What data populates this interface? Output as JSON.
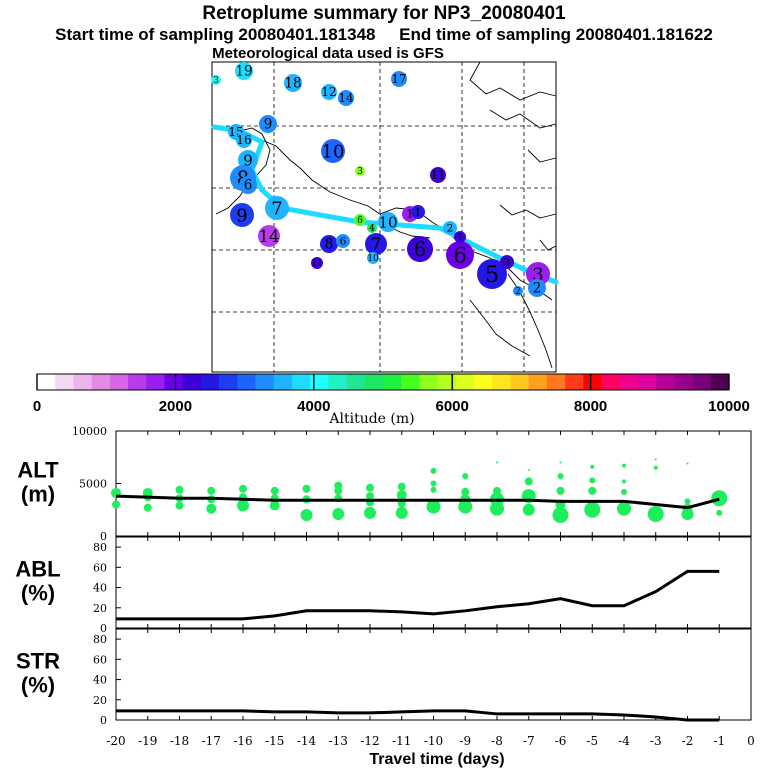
{
  "header": {
    "title": "Retroplume summary for NP3_20080401",
    "start_label": "Start time of sampling 20080401.181348",
    "end_label": "End time of sampling 20080401.181622",
    "met_label": "Meteorological data used is GFS"
  },
  "colorbar": {
    "ticks": [
      "0",
      "2000",
      "4000",
      "6000",
      "8000",
      "10000"
    ],
    "label": "Altitude (m)",
    "colors": [
      "#ffffff",
      "#f4d8f4",
      "#eeb4ee",
      "#e48ce4",
      "#d864e6",
      "#b83cea",
      "#9a1ef0",
      "#6a00e8",
      "#3c00d8",
      "#2418e6",
      "#1e3cf0",
      "#1e64ff",
      "#1e8cff",
      "#1eb4ff",
      "#1edcff",
      "#1effff",
      "#1ef0c8",
      "#1ee696",
      "#1ee664",
      "#1ef040",
      "#46ff1e",
      "#8cff1e",
      "#b4ff1e",
      "#dcff1e",
      "#ffff1e",
      "#ffe61e",
      "#ffc81e",
      "#ffa01e",
      "#ff781e",
      "#ff3c1e",
      "#ff0000",
      "#ff0064",
      "#f0008c",
      "#dc00a0",
      "#b40096",
      "#96008c",
      "#780078",
      "#500050"
    ]
  },
  "map": {
    "track_color": "#1edcff",
    "markers": [
      {
        "label": "3",
        "alt": 4200
      },
      {
        "label": "19",
        "alt": 3800
      },
      {
        "label": "18",
        "alt": 3700
      },
      {
        "label": "12",
        "alt": 3600
      },
      {
        "label": "14",
        "alt": 3500
      },
      {
        "label": "17",
        "alt": 3400
      },
      {
        "label": "9",
        "alt": 3300
      },
      {
        "label": "15",
        "alt": 3700
      },
      {
        "label": "16",
        "alt": 3700
      },
      {
        "label": "10",
        "alt": 3000
      },
      {
        "label": "9",
        "alt": 3600
      },
      {
        "label": "8",
        "alt": 3500
      },
      {
        "label": "3",
        "alt": 5800
      },
      {
        "label": "11",
        "alt": 2200
      },
      {
        "label": "6",
        "alt": 5600
      },
      {
        "label": "7",
        "alt": 3600
      },
      {
        "label": "9",
        "alt": 2900
      },
      {
        "label": "14",
        "alt": 1500
      },
      {
        "label": "8",
        "alt": 2600
      },
      {
        "label": "6",
        "alt": 3500
      },
      {
        "label": "4",
        "alt": 4900
      },
      {
        "label": "7",
        "alt": 2700
      },
      {
        "label": "10",
        "alt": 3700
      },
      {
        "label": "6",
        "alt": 2400
      },
      {
        "label": "1",
        "alt": 1700
      },
      {
        "label": "1",
        "alt": 2600
      },
      {
        "label": "2",
        "alt": 3600
      },
      {
        "label": "6",
        "alt": 2000
      },
      {
        "label": "5",
        "alt": 2500
      },
      {
        "label": "3",
        "alt": 1800
      },
      {
        "label": "3",
        "alt": 2300
      },
      {
        "label": "1",
        "alt": 2400
      },
      {
        "label": "2",
        "alt": 3400
      },
      {
        "label": "2",
        "alt": 3500
      },
      {
        "label": "11",
        "alt": 2300
      },
      {
        "label": "10",
        "alt": 3700
      },
      {
        "label": "6",
        "alt": 3300
      }
    ]
  },
  "chart_data": [
    {
      "type": "scatter",
      "panel_label": "ALT",
      "unit_label": "(m)",
      "ylim": [
        0,
        10000
      ],
      "yticks": [
        0,
        5000,
        10000
      ],
      "ytick_labels": [
        "0",
        "5000",
        "10000"
      ],
      "mean_line": {
        "x": [
          -20,
          -19,
          -18,
          -17,
          -16,
          -15,
          -14,
          -13,
          -12,
          -11,
          -10,
          -9,
          -8,
          -7,
          -6,
          -5,
          -4,
          -3,
          -2,
          -1
        ],
        "y": [
          3800,
          3700,
          3600,
          3600,
          3500,
          3400,
          3400,
          3400,
          3400,
          3400,
          3400,
          3400,
          3400,
          3400,
          3300,
          3300,
          3300,
          3000,
          2700,
          3500
        ]
      },
      "particles": [
        {
          "x": -20,
          "y": 4100,
          "s": 5
        },
        {
          "x": -20,
          "y": 3000,
          "s": 4
        },
        {
          "x": -19,
          "y": 4100,
          "s": 5
        },
        {
          "x": -19,
          "y": 3700,
          "s": 4
        },
        {
          "x": -19,
          "y": 2700,
          "s": 4
        },
        {
          "x": -18,
          "y": 4400,
          "s": 4
        },
        {
          "x": -18,
          "y": 3600,
          "s": 4
        },
        {
          "x": -18,
          "y": 2900,
          "s": 4
        },
        {
          "x": -17,
          "y": 4300,
          "s": 4
        },
        {
          "x": -17,
          "y": 3500,
          "s": 4
        },
        {
          "x": -17,
          "y": 2600,
          "s": 5
        },
        {
          "x": -16,
          "y": 4500,
          "s": 4
        },
        {
          "x": -16,
          "y": 3700,
          "s": 4
        },
        {
          "x": -16,
          "y": 2900,
          "s": 6
        },
        {
          "x": -15,
          "y": 4300,
          "s": 4
        },
        {
          "x": -15,
          "y": 3600,
          "s": 4
        },
        {
          "x": -15,
          "y": 2900,
          "s": 5
        },
        {
          "x": -14,
          "y": 4500,
          "s": 4
        },
        {
          "x": -14,
          "y": 3500,
          "s": 4
        },
        {
          "x": -14,
          "y": 2000,
          "s": 6
        },
        {
          "x": -13,
          "y": 4800,
          "s": 4
        },
        {
          "x": -13,
          "y": 4300,
          "s": 4
        },
        {
          "x": -13,
          "y": 3600,
          "s": 4
        },
        {
          "x": -13,
          "y": 2100,
          "s": 6
        },
        {
          "x": -12,
          "y": 4600,
          "s": 4
        },
        {
          "x": -12,
          "y": 3800,
          "s": 4
        },
        {
          "x": -12,
          "y": 3200,
          "s": 4
        },
        {
          "x": -12,
          "y": 2200,
          "s": 6
        },
        {
          "x": -11,
          "y": 4700,
          "s": 4
        },
        {
          "x": -11,
          "y": 3900,
          "s": 5
        },
        {
          "x": -11,
          "y": 3100,
          "s": 4
        },
        {
          "x": -11,
          "y": 2200,
          "s": 6
        },
        {
          "x": -10,
          "y": 6200,
          "s": 3
        },
        {
          "x": -10,
          "y": 5000,
          "s": 3
        },
        {
          "x": -10,
          "y": 4400,
          "s": 3
        },
        {
          "x": -10,
          "y": 2800,
          "s": 7
        },
        {
          "x": -9,
          "y": 5700,
          "s": 3
        },
        {
          "x": -9,
          "y": 4200,
          "s": 4
        },
        {
          "x": -9,
          "y": 3500,
          "s": 5
        },
        {
          "x": -9,
          "y": 2800,
          "s": 7
        },
        {
          "x": -8,
          "y": 7000,
          "s": 1
        },
        {
          "x": -8,
          "y": 4300,
          "s": 4
        },
        {
          "x": -8,
          "y": 3500,
          "s": 7
        },
        {
          "x": -8,
          "y": 2600,
          "s": 7
        },
        {
          "x": -7,
          "y": 6300,
          "s": 1
        },
        {
          "x": -7,
          "y": 5200,
          "s": 4
        },
        {
          "x": -7,
          "y": 3800,
          "s": 7
        },
        {
          "x": -7,
          "y": 2500,
          "s": 6
        },
        {
          "x": -6,
          "y": 7000,
          "s": 1
        },
        {
          "x": -6,
          "y": 5700,
          "s": 3
        },
        {
          "x": -6,
          "y": 4300,
          "s": 4
        },
        {
          "x": -6,
          "y": 3000,
          "s": 5
        },
        {
          "x": -6,
          "y": 2000,
          "s": 8
        },
        {
          "x": -5,
          "y": 6600,
          "s": 2
        },
        {
          "x": -5,
          "y": 5300,
          "s": 3
        },
        {
          "x": -5,
          "y": 4300,
          "s": 4
        },
        {
          "x": -5,
          "y": 2500,
          "s": 8
        },
        {
          "x": -4,
          "y": 6700,
          "s": 2
        },
        {
          "x": -4,
          "y": 5200,
          "s": 2
        },
        {
          "x": -4,
          "y": 4200,
          "s": 3
        },
        {
          "x": -4,
          "y": 2600,
          "s": 7
        },
        {
          "x": -3,
          "y": 7300,
          "s": 1
        },
        {
          "x": -3,
          "y": 6500,
          "s": 2
        },
        {
          "x": -3,
          "y": 2100,
          "s": 8
        },
        {
          "x": -2,
          "y": 6900,
          "s": 1
        },
        {
          "x": -2,
          "y": 3300,
          "s": 3
        },
        {
          "x": -2,
          "y": 2600,
          "s": 5
        },
        {
          "x": -2,
          "y": 2100,
          "s": 6
        },
        {
          "x": -1,
          "y": 3600,
          "s": 8
        },
        {
          "x": -1,
          "y": 2200,
          "s": 3
        }
      ],
      "particle_color": "#1eee5c"
    },
    {
      "type": "line",
      "panel_label": "ABL",
      "unit_label": "(%)",
      "ylim": [
        0,
        90
      ],
      "yticks": [
        0,
        20,
        40,
        60,
        80
      ],
      "ytick_labels": [
        "0",
        "20",
        "40",
        "60",
        "80"
      ],
      "x": [
        -20,
        -19,
        -18,
        -17,
        -16,
        -15,
        -14,
        -13,
        -12,
        -11,
        -10,
        -9,
        -8,
        -7,
        -6,
        -5,
        -4,
        -3,
        -2,
        -1
      ],
      "y": [
        9,
        9,
        9,
        9,
        9,
        12,
        17,
        17,
        17,
        16,
        14,
        17,
        21,
        24,
        29,
        22,
        22,
        36,
        56,
        56
      ]
    },
    {
      "type": "line",
      "panel_label": "STR",
      "unit_label": "(%)",
      "ylim": [
        0,
        90
      ],
      "yticks": [
        0,
        20,
        40,
        60,
        80
      ],
      "ytick_labels": [
        "0",
        "20",
        "40",
        "60",
        "80"
      ],
      "x": [
        -20,
        -19,
        -18,
        -17,
        -16,
        -15,
        -14,
        -13,
        -12,
        -11,
        -10,
        -9,
        -8,
        -7,
        -6,
        -5,
        -4,
        -3,
        -2,
        -1
      ],
      "y": [
        9,
        9,
        9,
        9,
        9,
        8,
        8,
        7,
        7,
        8,
        9,
        9,
        6,
        6,
        6,
        6,
        5,
        3,
        0,
        0
      ]
    }
  ],
  "x_axis": {
    "ticks": [
      "-20",
      "-19",
      "-18",
      "-17",
      "-16",
      "-15",
      "-14",
      "-13",
      "-12",
      "-11",
      "-10",
      "-9",
      "-8",
      "-7",
      "-6",
      "-5",
      "-4",
      "-3",
      "-2",
      "-1",
      "0"
    ],
    "label": "Travel time (days)",
    "xlim": [
      -20,
      0
    ]
  }
}
